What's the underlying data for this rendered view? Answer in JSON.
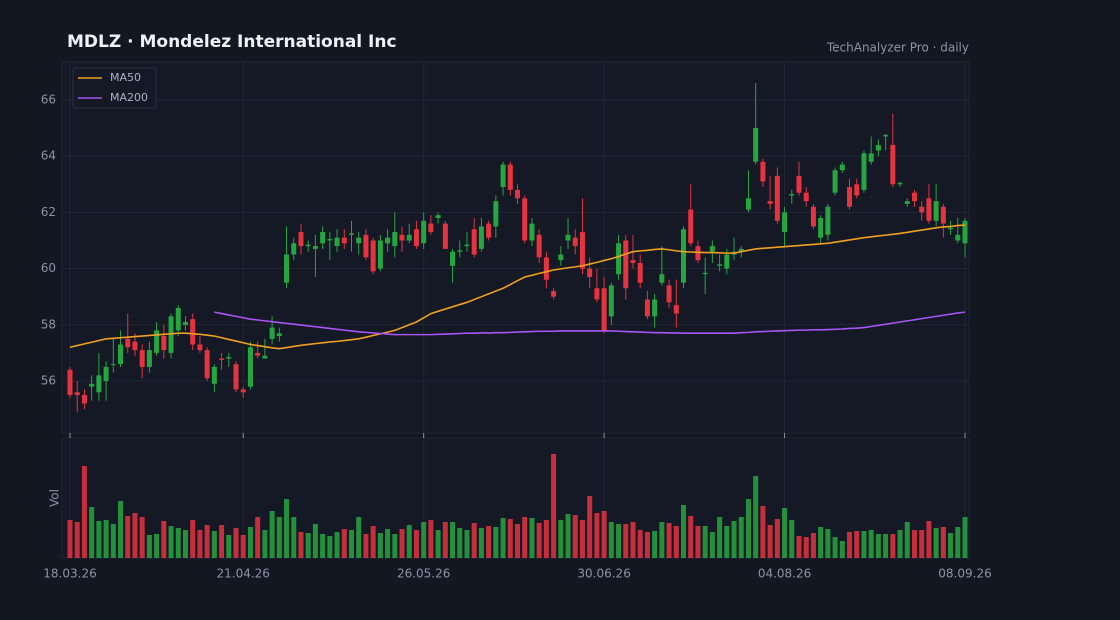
{
  "chart_data": {
    "type": "candlestick",
    "title": "MDLZ  ·  Mondelez International Inc",
    "subtitle": "TechAnalyzer Pro · daily",
    "categories": [
      "18.03.26",
      null,
      null,
      null,
      null,
      null,
      null,
      null,
      null,
      null,
      null,
      null,
      null,
      null,
      null,
      null,
      null,
      null,
      null,
      null,
      null,
      null,
      null,
      null,
      "21.04.26",
      null,
      null,
      null,
      null,
      null,
      null,
      null,
      null,
      null,
      null,
      null,
      null,
      null,
      null,
      null,
      null,
      null,
      null,
      null,
      null,
      null,
      null,
      null,
      null,
      "26.05.26",
      null,
      null,
      null,
      null,
      null,
      null,
      null,
      null,
      null,
      null,
      null,
      null,
      null,
      null,
      null,
      null,
      null,
      null,
      null,
      null,
      null,
      null,
      null,
      null,
      "30.06.26",
      null,
      null,
      null,
      null,
      null,
      null,
      null,
      null,
      null,
      null,
      null,
      null,
      null,
      null,
      null,
      null,
      null,
      null,
      null,
      null,
      null,
      null,
      null,
      null,
      "04.08.26",
      null,
      null,
      null,
      null,
      null,
      null,
      null,
      null,
      null,
      null,
      null,
      null,
      null,
      null,
      null,
      null,
      null,
      null,
      null,
      null,
      null,
      null,
      null,
      null,
      "08.09.26"
    ],
    "up_color": "#26a641",
    "down_color": "#e5333f",
    "open": [
      56.4,
      55.6,
      55.5,
      55.8,
      55.6,
      56.0,
      56.6,
      56.6,
      57.5,
      57.4,
      57.1,
      56.5,
      57.0,
      57.6,
      57.0,
      57.8,
      58.0,
      58.2,
      57.3,
      57.1,
      55.9,
      56.8,
      56.8,
      56.6,
      55.7,
      55.8,
      57.0,
      56.8,
      57.5,
      57.6,
      59.5,
      60.5,
      61.3,
      60.8,
      60.7,
      60.9,
      61.0,
      60.8,
      61.1,
      61.2,
      60.9,
      61.2,
      61.0,
      60.0,
      60.9,
      60.8,
      61.2,
      61.0,
      61.4,
      60.9,
      61.6,
      61.8,
      61.6,
      60.1,
      60.6,
      60.8,
      61.4,
      60.7,
      61.6,
      61.5,
      62.9,
      63.7,
      62.8,
      62.5,
      61.0,
      61.2,
      60.4,
      59.2,
      60.3,
      61.0,
      61.1,
      61.3,
      60.0,
      59.3,
      59.3,
      58.3,
      59.8,
      61.0,
      60.3,
      60.2,
      58.9,
      58.3,
      59.5,
      59.4,
      58.7,
      59.5,
      62.1,
      60.8,
      59.8,
      60.6,
      60.1,
      60.0,
      60.5,
      60.6,
      62.1,
      63.8,
      63.8,
      62.4,
      63.3,
      61.3,
      62.6,
      63.3,
      62.7,
      62.2,
      61.1,
      61.2,
      62.7,
      63.5,
      62.9,
      63.0,
      62.8,
      63.8,
      64.2,
      64.7,
      64.4,
      63.0,
      62.3,
      62.7,
      62.2,
      62.5,
      61.7,
      62.2,
      61.4,
      61.0,
      60.9
    ],
    "high": [
      56.5,
      56.0,
      55.7,
      56.2,
      57.0,
      56.7,
      57.5,
      57.8,
      58.4,
      57.7,
      57.3,
      57.4,
      58.1,
      58.0,
      58.4,
      58.7,
      58.3,
      58.4,
      57.6,
      57.2,
      56.6,
      57.0,
      57.0,
      56.7,
      55.8,
      57.4,
      57.4,
      57.5,
      58.3,
      57.9,
      61.5,
      61.1,
      61.6,
      61.0,
      61.2,
      61.5,
      61.3,
      61.4,
      61.4,
      61.7,
      61.3,
      61.4,
      61.1,
      61.2,
      61.4,
      62.0,
      61.5,
      61.6,
      61.7,
      62.0,
      61.9,
      62.0,
      61.7,
      60.7,
      61.0,
      61.3,
      61.8,
      61.8,
      61.7,
      62.6,
      63.8,
      63.8,
      63.0,
      62.6,
      61.8,
      61.4,
      60.6,
      59.3,
      60.8,
      61.8,
      61.4,
      62.5,
      60.4,
      60.0,
      59.7,
      59.5,
      61.2,
      61.2,
      61.2,
      60.5,
      59.2,
      59.1,
      60.8,
      59.6,
      59.6,
      61.5,
      63.0,
      61.0,
      60.4,
      61.0,
      60.5,
      60.7,
      61.1,
      60.8,
      63.5,
      66.6,
      63.9,
      63.3,
      63.6,
      62.2,
      62.8,
      63.8,
      62.9,
      62.3,
      61.9,
      62.3,
      63.6,
      63.8,
      63.2,
      63.2,
      64.2,
      64.7,
      64.6,
      64.8,
      65.5,
      63.1,
      62.5,
      62.8,
      62.4,
      63.0,
      63.0,
      62.3,
      61.7,
      61.8,
      61.8
    ],
    "low": [
      55.4,
      54.9,
      55.0,
      55.3,
      55.3,
      55.3,
      56.3,
      56.5,
      57.0,
      56.9,
      56.1,
      56.3,
      56.9,
      56.8,
      56.8,
      57.6,
      57.8,
      57.1,
      57.0,
      56.0,
      55.6,
      56.4,
      56.5,
      55.6,
      55.4,
      55.7,
      56.8,
      56.8,
      57.3,
      57.4,
      59.3,
      60.3,
      60.5,
      60.6,
      59.7,
      60.7,
      60.3,
      60.6,
      60.7,
      60.6,
      60.5,
      60.3,
      59.8,
      59.9,
      60.6,
      60.4,
      60.6,
      60.9,
      60.7,
      60.7,
      61.2,
      61.6,
      60.7,
      59.5,
      60.4,
      60.6,
      60.4,
      60.6,
      61.0,
      61.1,
      62.6,
      62.6,
      62.3,
      60.9,
      60.8,
      60.2,
      59.3,
      58.9,
      60.1,
      60.7,
      60.5,
      59.8,
      59.3,
      58.8,
      57.7,
      58.0,
      59.6,
      58.9,
      60.0,
      59.3,
      58.2,
      57.9,
      59.4,
      58.6,
      57.9,
      59.3,
      60.8,
      60.2,
      59.1,
      60.2,
      59.9,
      59.8,
      60.3,
      60.4,
      62.0,
      63.7,
      62.9,
      62.1,
      61.6,
      60.8,
      62.3,
      62.6,
      62.2,
      61.4,
      60.9,
      61.0,
      62.6,
      63.4,
      62.1,
      62.5,
      62.7,
      63.7,
      64.0,
      64.2,
      62.9,
      62.9,
      62.2,
      62.2,
      61.7,
      61.6,
      61.5,
      61.1,
      61.2,
      60.9,
      60.4
    ],
    "close": [
      55.5,
      55.5,
      55.2,
      55.9,
      56.2,
      56.5,
      56.6,
      57.3,
      57.2,
      57.1,
      56.5,
      57.1,
      57.8,
      57.1,
      58.3,
      58.6,
      58.1,
      57.3,
      57.1,
      56.1,
      56.5,
      56.75,
      56.85,
      55.7,
      55.6,
      57.2,
      56.9,
      56.9,
      57.9,
      57.7,
      60.5,
      60.9,
      60.8,
      60.85,
      60.8,
      61.3,
      61.05,
      61.1,
      60.9,
      61.25,
      61.1,
      60.4,
      59.9,
      61.0,
      61.1,
      61.3,
      61.0,
      61.2,
      60.8,
      61.7,
      61.3,
      61.9,
      60.7,
      60.6,
      60.65,
      60.85,
      60.5,
      61.5,
      61.1,
      62.4,
      63.7,
      62.8,
      62.5,
      61.0,
      61.6,
      60.4,
      59.6,
      59.0,
      60.5,
      61.2,
      60.8,
      60.0,
      59.7,
      58.9,
      57.8,
      59.4,
      60.9,
      59.3,
      60.2,
      59.5,
      58.3,
      58.9,
      59.8,
      58.8,
      58.4,
      61.4,
      60.9,
      60.3,
      59.85,
      60.8,
      60.15,
      60.5,
      60.6,
      60.7,
      62.5,
      65.0,
      63.1,
      62.3,
      61.7,
      62.0,
      62.65,
      62.7,
      62.4,
      61.5,
      61.8,
      62.2,
      63.5,
      63.7,
      62.2,
      62.6,
      64.1,
      64.1,
      64.4,
      64.75,
      63.0,
      63.05,
      62.4,
      62.4,
      62.0,
      61.7,
      62.4,
      61.6,
      61.45,
      61.2,
      61.7
    ],
    "ylim": [
      54.15,
      67.35
    ],
    "yticks": [
      56,
      58,
      60,
      62,
      64,
      66
    ],
    "grid": true,
    "series": [
      {
        "name": "MA50",
        "color": "#f0a020",
        "values": [
          57.2,
          57.26,
          57.32,
          57.38,
          57.44,
          57.5,
          57.52,
          57.54,
          57.56,
          57.58,
          57.6,
          57.62,
          57.64,
          57.66,
          57.68,
          57.7,
          57.7,
          57.68,
          57.66,
          57.63,
          57.6,
          57.54,
          57.48,
          57.42,
          57.36,
          57.3,
          57.26,
          57.22,
          57.18,
          57.15,
          57.19,
          57.23,
          57.27,
          57.3,
          57.33,
          57.36,
          57.39,
          57.41,
          57.44,
          57.47,
          57.5,
          57.56,
          57.62,
          57.68,
          57.74,
          57.8,
          57.9,
          58.0,
          58.1,
          58.25,
          58.4,
          58.48,
          58.56,
          58.64,
          58.72,
          58.8,
          58.9,
          59.0,
          59.1,
          59.2,
          59.3,
          59.43,
          59.57,
          59.7,
          59.76,
          59.83,
          59.89,
          59.95,
          59.99,
          60.03,
          60.06,
          60.1,
          60.16,
          60.22,
          60.29,
          60.35,
          60.43,
          60.52,
          60.6,
          60.63,
          60.65,
          60.68,
          60.7,
          60.67,
          60.63,
          60.6,
          60.59,
          60.58,
          60.57,
          60.57,
          60.56,
          60.55,
          60.55,
          60.6,
          60.65,
          60.7,
          60.72,
          60.74,
          60.76,
          60.78,
          60.8,
          60.82,
          60.84,
          60.86,
          60.88,
          60.9,
          60.94,
          60.98,
          61.02,
          61.06,
          61.1,
          61.13,
          61.16,
          61.19,
          61.22,
          61.25,
          61.29,
          61.33,
          61.37,
          61.41,
          61.45,
          61.48,
          61.5,
          61.53,
          61.55
        ]
      },
      {
        "name": "MA200",
        "color": "#a855f7",
        "values": [
          null,
          null,
          null,
          null,
          null,
          null,
          null,
          null,
          null,
          null,
          null,
          null,
          null,
          null,
          null,
          null,
          null,
          null,
          null,
          null,
          58.45,
          58.4,
          58.35,
          58.3,
          58.25,
          58.2,
          58.17,
          58.14,
          58.11,
          58.08,
          58.05,
          58.02,
          57.99,
          57.96,
          57.93,
          57.9,
          57.87,
          57.84,
          57.81,
          57.78,
          57.75,
          57.73,
          57.71,
          57.69,
          57.67,
          57.65,
          57.65,
          57.65,
          57.65,
          57.65,
          57.65,
          57.66,
          57.67,
          57.68,
          57.69,
          57.7,
          57.7,
          57.71,
          57.71,
          57.72,
          57.72,
          57.73,
          57.74,
          57.75,
          57.76,
          57.77,
          57.77,
          57.77,
          57.78,
          57.78,
          57.78,
          57.78,
          57.78,
          57.78,
          57.78,
          57.78,
          57.77,
          57.76,
          57.75,
          57.74,
          57.73,
          57.72,
          57.72,
          57.71,
          57.71,
          57.7,
          57.7,
          57.7,
          57.7,
          57.7,
          57.7,
          57.7,
          57.7,
          57.72,
          57.73,
          57.75,
          57.76,
          57.77,
          57.78,
          57.79,
          57.8,
          57.81,
          57.81,
          57.82,
          57.82,
          57.83,
          57.84,
          57.85,
          57.87,
          57.88,
          57.9,
          57.94,
          57.98,
          58.02,
          58.06,
          58.1,
          58.14,
          58.18,
          58.22,
          58.26,
          58.3,
          58.34,
          58.38,
          58.42,
          58.45
        ]
      }
    ],
    "legend": "upper left",
    "volume": {
      "label": "Vol",
      "ylim": [
        0,
        120
      ],
      "values": [
        38,
        36,
        92,
        51,
        37,
        38,
        34,
        57,
        42,
        45,
        41,
        23,
        24,
        37,
        32,
        30,
        28,
        38,
        28,
        33,
        27,
        33,
        23,
        30,
        23,
        31,
        41,
        28,
        47,
        41,
        59,
        41,
        26,
        25,
        34,
        24,
        22,
        26,
        29,
        28,
        41,
        24,
        32,
        25,
        29,
        24,
        29,
        33,
        28,
        36,
        38,
        28,
        36,
        36,
        30,
        28,
        35,
        30,
        32,
        31,
        40,
        39,
        34,
        41,
        40,
        35,
        38,
        104,
        38,
        44,
        43,
        38,
        62,
        45,
        47,
        36,
        34,
        34,
        36,
        28,
        26,
        27,
        36,
        35,
        32,
        53,
        42,
        32,
        32,
        26,
        41,
        32,
        37,
        41,
        59,
        82,
        52,
        33,
        39,
        50,
        38,
        22,
        21,
        25,
        31,
        29,
        21,
        17,
        26,
        27,
        27,
        28,
        24,
        24,
        24,
        28,
        36,
        28,
        28,
        37,
        30,
        31,
        25,
        31,
        41
      ]
    }
  }
}
